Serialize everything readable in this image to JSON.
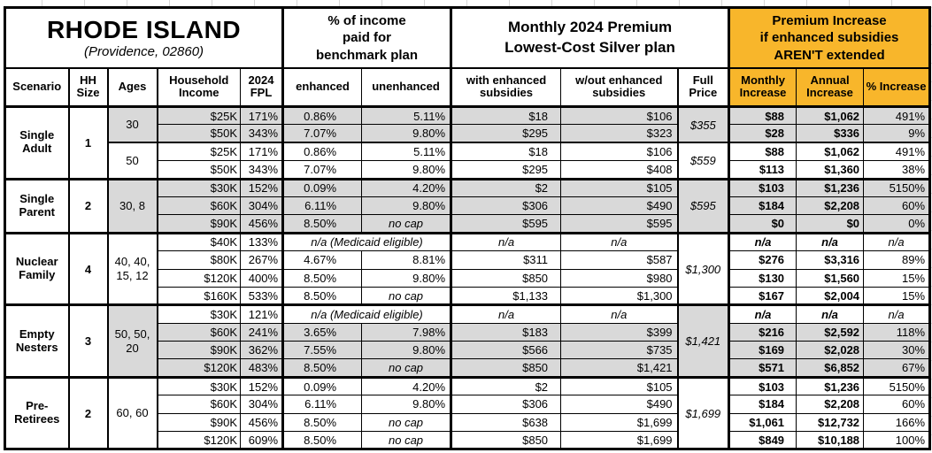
{
  "title": "RHODE ISLAND",
  "subtitle": "(Providence, 02860)",
  "colors": {
    "accent": "#F8B62B",
    "shade": "#D9D9D9"
  },
  "group_headers": {
    "pct_income_lines": [
      "% of income",
      "paid for",
      "benchmark plan"
    ],
    "premium_lines": [
      "Monthly 2024 Premium",
      "Lowest-Cost Silver plan"
    ],
    "increase_lines": [
      "Premium Increase",
      "if enhanced subsidies",
      "AREN'T extended"
    ]
  },
  "column_headers": [
    "Scenario",
    "HH Size",
    "Ages",
    "Household Income",
    "2024 FPL",
    "enhanced",
    "unenhanced",
    "with enhanced subsidies",
    "w/out enhanced subsidies",
    "Full Price",
    "Monthly Increase",
    "Annual Increase",
    "% Increase"
  ],
  "groups": [
    {
      "scenario": "Single Adult",
      "hh_size": "1",
      "subgroups": [
        {
          "ages": "30",
          "ages_shaded": true,
          "full_price": "$355",
          "full_shaded": true,
          "rows": [
            {
              "shaded": true,
              "income": "$25K",
              "fpl": "171%",
              "enhanced": "0.86%",
              "unenhanced": "5.11%",
              "with_sub": "$18",
              "wout_sub": "$106",
              "monthly": "$88",
              "annual": "$1,062",
              "pct": "491%"
            },
            {
              "shaded": true,
              "income": "$50K",
              "fpl": "343%",
              "enhanced": "7.07%",
              "unenhanced": "9.80%",
              "with_sub": "$295",
              "wout_sub": "$323",
              "monthly": "$28",
              "annual": "$336",
              "pct": "9%"
            }
          ]
        },
        {
          "ages": "50",
          "ages_shaded": false,
          "full_price": "$559",
          "full_shaded": false,
          "rows": [
            {
              "shaded": false,
              "income": "$25K",
              "fpl": "171%",
              "enhanced": "0.86%",
              "unenhanced": "5.11%",
              "with_sub": "$18",
              "wout_sub": "$106",
              "monthly": "$88",
              "annual": "$1,062",
              "pct": "491%"
            },
            {
              "shaded": false,
              "income": "$50K",
              "fpl": "343%",
              "enhanced": "7.07%",
              "unenhanced": "9.80%",
              "with_sub": "$295",
              "wout_sub": "$408",
              "monthly": "$113",
              "annual": "$1,360",
              "pct": "38%"
            }
          ]
        }
      ]
    },
    {
      "scenario": "Single Parent",
      "hh_size": "2",
      "subgroups": [
        {
          "ages": "30, 8",
          "ages_shaded": true,
          "full_price": "$595",
          "full_shaded": true,
          "rows": [
            {
              "shaded": true,
              "income": "$30K",
              "fpl": "152%",
              "enhanced": "0.09%",
              "unenhanced": "4.20%",
              "with_sub": "$2",
              "wout_sub": "$105",
              "monthly": "$103",
              "annual": "$1,236",
              "pct": "5150%"
            },
            {
              "shaded": true,
              "income": "$60K",
              "fpl": "304%",
              "enhanced": "6.11%",
              "unenhanced": "9.80%",
              "with_sub": "$306",
              "wout_sub": "$490",
              "monthly": "$184",
              "annual": "$2,208",
              "pct": "60%"
            },
            {
              "shaded": true,
              "income": "$90K",
              "fpl": "456%",
              "enhanced": "8.50%",
              "unenhanced": "no cap",
              "with_sub": "$595",
              "wout_sub": "$595",
              "monthly": "$0",
              "annual": "$0",
              "pct": "0%"
            }
          ]
        }
      ]
    },
    {
      "scenario": "Nuclear Family",
      "hh_size": "4",
      "subgroups": [
        {
          "ages": "40, 40, 15, 12",
          "ages_shaded": false,
          "full_price": "$1,300",
          "full_shaded": false,
          "rows": [
            {
              "shaded": false,
              "medicaid": true,
              "income": "$40K",
              "fpl": "133%",
              "enhanced": "n/a (Medicaid eligible)",
              "unenhanced": "",
              "with_sub": "n/a",
              "wout_sub": "n/a",
              "monthly": "n/a",
              "annual": "n/a",
              "pct": "n/a"
            },
            {
              "shaded": false,
              "income": "$80K",
              "fpl": "267%",
              "enhanced": "4.67%",
              "unenhanced": "8.81%",
              "with_sub": "$311",
              "wout_sub": "$587",
              "monthly": "$276",
              "annual": "$3,316",
              "pct": "89%"
            },
            {
              "shaded": false,
              "income": "$120K",
              "fpl": "400%",
              "enhanced": "8.50%",
              "unenhanced": "9.80%",
              "with_sub": "$850",
              "wout_sub": "$980",
              "monthly": "$130",
              "annual": "$1,560",
              "pct": "15%"
            },
            {
              "shaded": false,
              "income": "$160K",
              "fpl": "533%",
              "enhanced": "8.50%",
              "unenhanced": "no cap",
              "with_sub": "$1,133",
              "wout_sub": "$1,300",
              "monthly": "$167",
              "annual": "$2,004",
              "pct": "15%"
            }
          ]
        }
      ]
    },
    {
      "scenario": "Empty Nesters",
      "hh_size": "3",
      "subgroups": [
        {
          "ages": "50, 50, 20",
          "ages_shaded": true,
          "full_price": "$1,421",
          "full_shaded": true,
          "rows": [
            {
              "shaded": false,
              "medicaid": true,
              "income": "$30K",
              "fpl": "121%",
              "enhanced": "n/a (Medicaid eligible)",
              "unenhanced": "",
              "with_sub": "n/a",
              "wout_sub": "n/a",
              "monthly": "n/a",
              "annual": "n/a",
              "pct": "n/a"
            },
            {
              "shaded": true,
              "income": "$60K",
              "fpl": "241%",
              "enhanced": "3.65%",
              "unenhanced": "7.98%",
              "with_sub": "$183",
              "wout_sub": "$399",
              "monthly": "$216",
              "annual": "$2,592",
              "pct": "118%"
            },
            {
              "shaded": true,
              "income": "$90K",
              "fpl": "362%",
              "enhanced": "7.55%",
              "unenhanced": "9.80%",
              "with_sub": "$566",
              "wout_sub": "$735",
              "monthly": "$169",
              "annual": "$2,028",
              "pct": "30%"
            },
            {
              "shaded": true,
              "income": "$120K",
              "fpl": "483%",
              "enhanced": "8.50%",
              "unenhanced": "no cap",
              "with_sub": "$850",
              "wout_sub": "$1,421",
              "monthly": "$571",
              "annual": "$6,852",
              "pct": "67%"
            }
          ]
        }
      ]
    },
    {
      "scenario": "Pre-Retirees",
      "hh_size": "2",
      "subgroups": [
        {
          "ages": "60, 60",
          "ages_shaded": false,
          "full_price": "$1,699",
          "full_shaded": false,
          "rows": [
            {
              "shaded": false,
              "income": "$30K",
              "fpl": "152%",
              "enhanced": "0.09%",
              "unenhanced": "4.20%",
              "with_sub": "$2",
              "wout_sub": "$105",
              "monthly": "$103",
              "annual": "$1,236",
              "pct": "5150%"
            },
            {
              "shaded": false,
              "income": "$60K",
              "fpl": "304%",
              "enhanced": "6.11%",
              "unenhanced": "9.80%",
              "with_sub": "$306",
              "wout_sub": "$490",
              "monthly": "$184",
              "annual": "$2,208",
              "pct": "60%"
            },
            {
              "shaded": false,
              "income": "$90K",
              "fpl": "456%",
              "enhanced": "8.50%",
              "unenhanced": "no cap",
              "with_sub": "$638",
              "wout_sub": "$1,699",
              "monthly": "$1,061",
              "annual": "$12,732",
              "pct": "166%"
            },
            {
              "shaded": false,
              "income": "$120K",
              "fpl": "609%",
              "enhanced": "8.50%",
              "unenhanced": "no cap",
              "with_sub": "$850",
              "wout_sub": "$1,699",
              "monthly": "$849",
              "annual": "$10,188",
              "pct": "100%"
            }
          ]
        }
      ]
    }
  ]
}
